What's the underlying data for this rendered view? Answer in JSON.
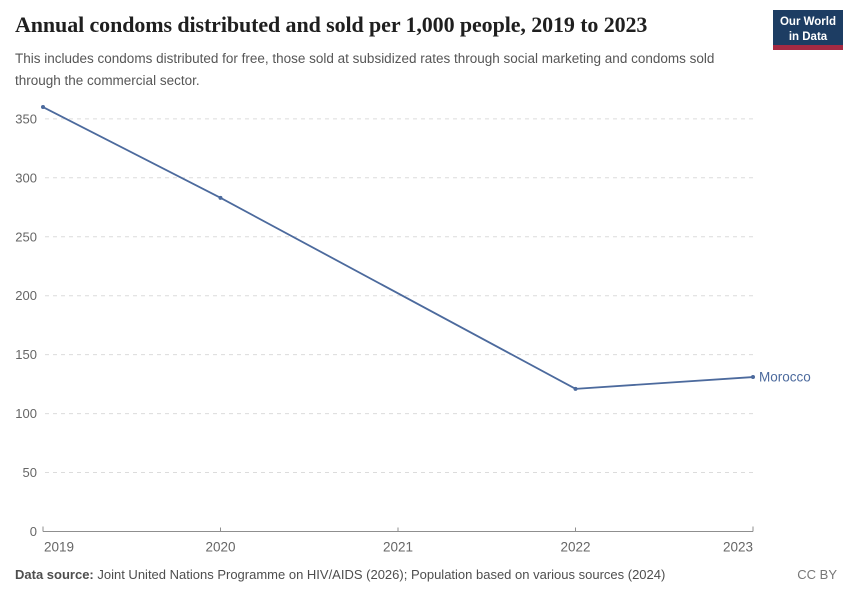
{
  "header": {
    "title": "Annual condoms distributed and sold per 1,000 people, 2019 to 2023",
    "subtitle": "This includes condoms distributed for free, those sold at subsidized rates through social marketing and condoms sold through the commercial sector.",
    "logo": {
      "line1": "Our World",
      "line2": "in Data",
      "bg_color": "#1d3d63",
      "bar_color": "#a52a43"
    }
  },
  "chart_data": {
    "type": "line",
    "title": "Annual condoms distributed and sold per 1,000 people, 2019 to 2023",
    "x": [
      2019,
      2020,
      2021,
      2022,
      2023
    ],
    "x_ticks": [
      "2019",
      "2020",
      "2021",
      "2022",
      "2023"
    ],
    "y_ticks": [
      0,
      50,
      100,
      150,
      200,
      250,
      300,
      350
    ],
    "ylim": [
      0,
      372
    ],
    "grid": "dashed-horizontal",
    "legend_position": "end-of-line-label",
    "note": "No data point for 2021; line interpolated between 2020 and 2022",
    "series": [
      {
        "name": "Morocco",
        "color": "#4c6a9d",
        "values": [
          360,
          283,
          null,
          121,
          131
        ]
      }
    ],
    "colors": {
      "gridline": "#dcdcdc",
      "axis": "#8f8f8f",
      "tick_label": "#666666"
    }
  },
  "footer": {
    "source_label": "Data source:",
    "source_text": " Joint United Nations Programme on HIV/AIDS (2026); Population based on various sources (2024)",
    "license": "CC BY"
  }
}
